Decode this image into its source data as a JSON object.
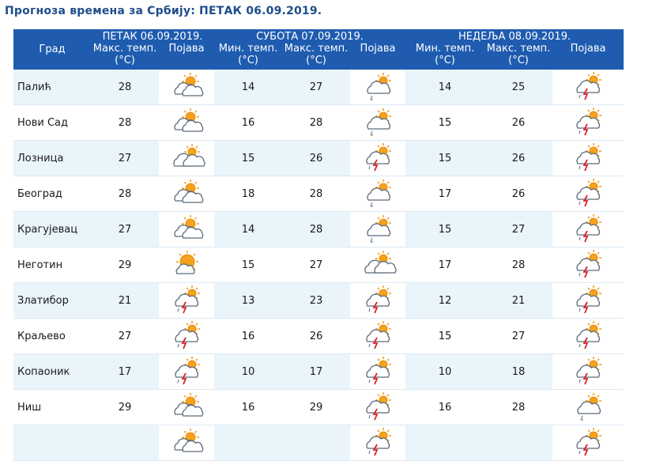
{
  "title": "Прогноза времена за Србију: ПЕТАК  06.09.2019.",
  "header": {
    "city_col": "Град",
    "days": [
      {
        "label": "ПЕТАК  06.09.2019.",
        "cols": [
          "Макс. темп. (°C)",
          "Појава"
        ]
      },
      {
        "label": "СУБОТА  07.09.2019.",
        "cols": [
          "Мин. темп. (°C)",
          "Макс. темп. (°C)",
          "Појава"
        ]
      },
      {
        "label": "НЕДЕЉА  08.09.2019.",
        "cols": [
          "Мин. темп. (°C)",
          "Макс. темп. (°C)",
          "Појава"
        ]
      }
    ]
  },
  "rows": [
    {
      "city": "Палић",
      "fri_max": "28",
      "fri_icon": "partly-cloudy-icon",
      "sat_min": "14",
      "sat_max": "27",
      "sat_icon": "cloud-rain-sun-icon",
      "sun_min": "14",
      "sun_max": "25",
      "sun_icon": "thunderstorm-sun-icon"
    },
    {
      "city": "Нови Сад",
      "fri_max": "28",
      "fri_icon": "partly-cloudy-icon",
      "sat_min": "16",
      "sat_max": "28",
      "sat_icon": "cloud-rain-sun-icon",
      "sun_min": "15",
      "sun_max": "26",
      "sun_icon": "thunderstorm-sun-icon"
    },
    {
      "city": "Лозница",
      "fri_max": "27",
      "fri_icon": "cloudy-sun-icon",
      "sat_min": "15",
      "sat_max": "26",
      "sat_icon": "thunderstorm-sun-icon",
      "sun_min": "15",
      "sun_max": "26",
      "sun_icon": "thunderstorm-sun-icon"
    },
    {
      "city": "Београд",
      "fri_max": "28",
      "fri_icon": "partly-cloudy-icon",
      "sat_min": "18",
      "sat_max": "28",
      "sat_icon": "cloud-rain-sun-icon",
      "sun_min": "17",
      "sun_max": "26",
      "sun_icon": "thunderstorm-sun-icon"
    },
    {
      "city": "Крагујевац",
      "fri_max": "27",
      "fri_icon": "partly-cloudy-icon",
      "sat_min": "14",
      "sat_max": "28",
      "sat_icon": "cloud-rain-sun-icon",
      "sun_min": "15",
      "sun_max": "27",
      "sun_icon": "thunderstorm-sun-icon"
    },
    {
      "city": "Неготин",
      "fri_max": "29",
      "fri_icon": "mostly-sunny-icon",
      "sat_min": "15",
      "sat_max": "27",
      "sat_icon": "cloudy-sun-icon",
      "sun_min": "17",
      "sun_max": "28",
      "sun_icon": "thunderstorm-sun-icon"
    },
    {
      "city": "Златибор",
      "fri_max": "21",
      "fri_icon": "thunderstorm-sun-icon",
      "sat_min": "13",
      "sat_max": "23",
      "sat_icon": "thunderstorm-sun-icon",
      "sun_min": "12",
      "sun_max": "21",
      "sun_icon": "thunderstorm-sun-icon"
    },
    {
      "city": "Краљево",
      "fri_max": "27",
      "fri_icon": "thunderstorm-sun-icon",
      "sat_min": "16",
      "sat_max": "26",
      "sat_icon": "thunderstorm-sun-icon",
      "sun_min": "15",
      "sun_max": "27",
      "sun_icon": "thunderstorm-sun-icon"
    },
    {
      "city": "Копаоник",
      "fri_max": "17",
      "fri_icon": "thunderstorm-sun-icon",
      "sat_min": "10",
      "sat_max": "17",
      "sat_icon": "thunderstorm-sun-icon",
      "sun_min": "10",
      "sun_max": "18",
      "sun_icon": "thunderstorm-sun-icon"
    },
    {
      "city": "Ниш",
      "fri_max": "29",
      "fri_icon": "partly-cloudy-icon",
      "sat_min": "16",
      "sat_max": "29",
      "sat_icon": "thunderstorm-sun-icon",
      "sun_min": "16",
      "sun_max": "28",
      "sun_icon": "cloud-rain-sun-icon"
    },
    {
      "city": "",
      "fri_max": "",
      "fri_icon": "partly-cloudy-icon",
      "sat_min": "",
      "sat_max": "",
      "sat_icon": "thunderstorm-sun-icon",
      "sun_min": "",
      "sun_max": "",
      "sun_icon": "thunderstorm-sun-icon"
    }
  ],
  "colors": {
    "header_bg": "#1f5cb0",
    "title": "#1f4e8c",
    "row_alt": "#eaf4fb",
    "sun": "#f6a21a",
    "lightning": "#d9232a"
  }
}
